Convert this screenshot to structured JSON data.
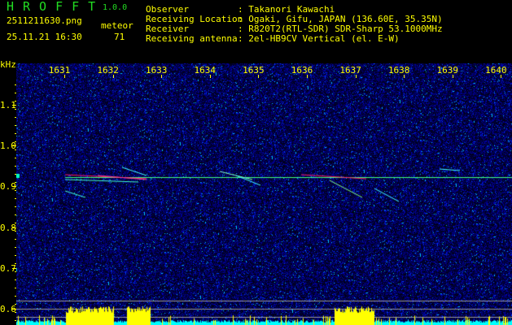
{
  "app": {
    "title": "HROFFT",
    "version": "1.0.0"
  },
  "file": {
    "name": "2511211630.png",
    "datetime": "25.11.21 16:30"
  },
  "meteor": {
    "label": "meteor",
    "count": "71"
  },
  "info": [
    {
      "label": "Observer",
      "value": ": Takanori Kawachi"
    },
    {
      "label": "Receiving Location",
      "value": ": Ogaki, Gifu, JAPAN (136.60E, 35.35N)"
    },
    {
      "label": "Receiver",
      "value": ": R820T2(RTL-SDR) SDR-Sharp 53.1000MHz"
    },
    {
      "label": "Receiving antenna",
      "value": ": 2el-HB9CV Vertical (el. E-W)"
    }
  ],
  "axes": {
    "y_unit": "kHz",
    "y_ticks": [
      "1.1",
      "1.0",
      "0.9",
      "0.8",
      "0.7",
      "0.6"
    ],
    "x_ticks": [
      "1631",
      "1632",
      "1633",
      "1634",
      "1635",
      "1636",
      "1637",
      "1638",
      "1639",
      "1640"
    ]
  },
  "colors": {
    "text": "#ffff00",
    "title": "#22dd22",
    "noise": "#0a14a0",
    "carrier": "#40ff80",
    "echo_hot": "#ff2060",
    "histogram": "#ffff00",
    "baseline": "#00ffff"
  }
}
